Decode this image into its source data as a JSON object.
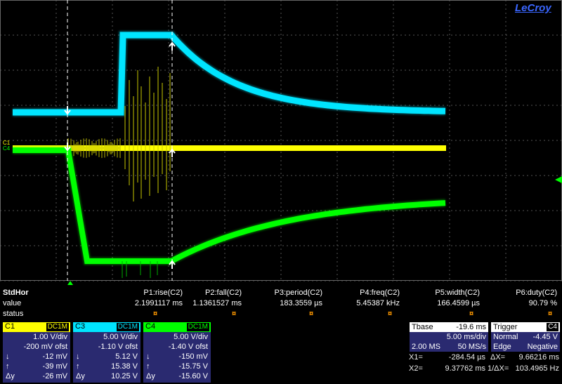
{
  "brand": "LeCroy",
  "measurements": {
    "row_labels": {
      "header": "StdHor",
      "value": "value",
      "status": "status"
    },
    "columns": [
      {
        "param": "P1:rise(C2)",
        "value": "2.1991117 ms",
        "status": "¤"
      },
      {
        "param": "P2:fall(C2)",
        "value": "1.1361527 ms",
        "status": "¤"
      },
      {
        "param": "P3:period(C2)",
        "value": "183.3559 µs",
        "status": "¤"
      },
      {
        "param": "P4:freq(C2)",
        "value": "5.45387 kHz",
        "status": "¤"
      },
      {
        "param": "P5:width(C2)",
        "value": "166.4599 µs",
        "status": "¤"
      },
      {
        "param": "P6:duty(C2)",
        "value": "90.79 %",
        "status": "¤"
      }
    ]
  },
  "channels": [
    {
      "name": "C1",
      "coupling": "DC1M",
      "color": "#ffff00",
      "vdiv": "1.00 V/div",
      "offset": "-200 mV ofst",
      "cursor_down": "-12 mV",
      "cursor_up": "-39 mV",
      "delta": "-26 mV"
    },
    {
      "name": "C3",
      "coupling": "DC1M",
      "color": "#00e5ff",
      "vdiv": "5.00 V/div",
      "offset": "-1.10 V ofst",
      "cursor_down": "5.12 V",
      "cursor_up": "15.38 V",
      "delta": "10.25 V"
    },
    {
      "name": "C4",
      "coupling": "DC1M",
      "color": "#00ff00",
      "vdiv": "5.00 V/div",
      "offset": "-1.40 V ofst",
      "cursor_down": "-150 mV",
      "cursor_up": "-15.75 V",
      "delta": "-15.60 V"
    }
  ],
  "cursor_symbols": {
    "down": "↓",
    "up": "↑",
    "delta": "Δy"
  },
  "timebase": {
    "label": "Tbase",
    "position": "-19.6 ms",
    "scale": "5.00 ms/div",
    "samples": "2.00 MS",
    "rate": "50 MS/s"
  },
  "trigger": {
    "label": "Trigger",
    "source": "C4",
    "mode": "Normal",
    "level": "-4.45 V",
    "type": "Edge",
    "slope": "Negative"
  },
  "cursors": {
    "x1_label": "X1=",
    "x1": "-284.54 µs",
    "dx_label": "ΔX=",
    "dx": "9.66216 ms",
    "x2_label": "X2=",
    "x2": "9.37762 ms",
    "inv_dx_label": "1/ΔX=",
    "inv_dx": "103.4965 Hz"
  },
  "colors": {
    "panel": "#2a2a70",
    "grid": "#555555",
    "c1": "#ffff00",
    "c3": "#00e5ff",
    "c4": "#00ff00",
    "status_mark": "#ff9900",
    "brand": "#3a66ff"
  },
  "trace_side_labels": [
    "C1",
    "C4"
  ]
}
